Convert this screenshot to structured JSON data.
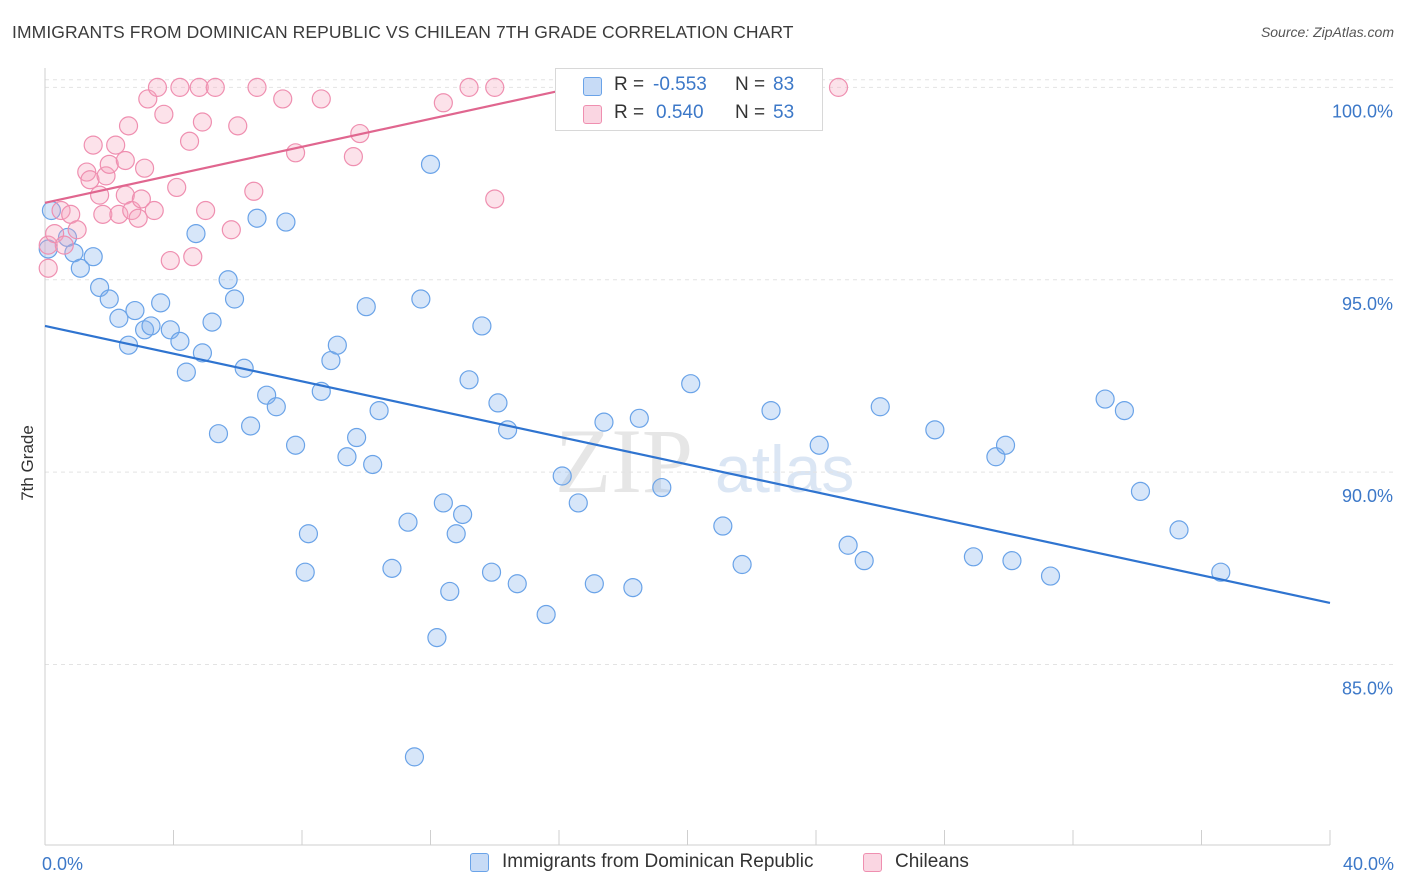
{
  "title": "IMMIGRANTS FROM DOMINICAN REPUBLIC VS CHILEAN 7TH GRADE CORRELATION CHART",
  "source": "Source: ZipAtlas.com",
  "watermark": {
    "zip": "ZIP",
    "atlas": "atlas"
  },
  "colors": {
    "blue": "#6aa3e8",
    "blue_fill": "rgba(130,176,235,0.32)",
    "blue_line": "#2f74d0",
    "pink": "#ef8fb0",
    "pink_fill": "rgba(245,165,190,0.32)",
    "pink_line": "#e0668f",
    "axis_label": "#3c78c8"
  },
  "legend": {
    "rows": [
      {
        "r_label": "R =",
        "r_value": "-0.553",
        "n_label": "N =",
        "n_value": "83"
      },
      {
        "r_label": "R =",
        "r_value": "0.540",
        "n_label": "N =",
        "n_value": "53"
      }
    ]
  },
  "bottom_legend": [
    "Immigrants from Dominican Republic",
    "Chileans"
  ],
  "chart_data": {
    "type": "scatter",
    "title": "IMMIGRANTS FROM DOMINICAN REPUBLIC VS CHILEAN 7TH GRADE CORRELATION CHART",
    "xlabel": "",
    "ylabel": "7th Grade",
    "xlim": [
      0,
      40
    ],
    "ylim": [
      80.7,
      100.4
    ],
    "x_tick_labels": [
      "0.0%",
      "40.0%"
    ],
    "y_ticks": [
      85,
      90,
      95,
      100
    ],
    "y_tick_labels": [
      "85.0%",
      "90.0%",
      "95.0%",
      "100.0%"
    ],
    "grid": "horizontal dashed",
    "legend_position": "top-center",
    "series": [
      {
        "name": "Immigrants from Dominican Republic",
        "color": "#6aa3e8",
        "trend": {
          "x": [
            0,
            40
          ],
          "y": [
            93.8,
            86.6
          ]
        },
        "points": [
          [
            0.1,
            95.8
          ],
          [
            0.2,
            96.8
          ],
          [
            0.7,
            96.1
          ],
          [
            0.9,
            95.7
          ],
          [
            1.1,
            95.3
          ],
          [
            1.5,
            95.6
          ],
          [
            1.7,
            94.8
          ],
          [
            2.0,
            94.5
          ],
          [
            2.3,
            94.0
          ],
          [
            2.6,
            93.3
          ],
          [
            2.8,
            94.2
          ],
          [
            3.1,
            93.7
          ],
          [
            3.3,
            93.8
          ],
          [
            3.6,
            94.4
          ],
          [
            3.9,
            93.7
          ],
          [
            4.2,
            93.4
          ],
          [
            4.4,
            92.6
          ],
          [
            4.7,
            96.2
          ],
          [
            4.9,
            93.1
          ],
          [
            5.2,
            93.9
          ],
          [
            5.4,
            91.0
          ],
          [
            5.7,
            95.0
          ],
          [
            5.9,
            94.5
          ],
          [
            6.2,
            92.7
          ],
          [
            6.4,
            91.2
          ],
          [
            6.6,
            96.6
          ],
          [
            6.9,
            92.0
          ],
          [
            7.2,
            91.7
          ],
          [
            7.5,
            96.5
          ],
          [
            7.8,
            90.7
          ],
          [
            8.2,
            88.4
          ],
          [
            8.1,
            87.4
          ],
          [
            8.6,
            92.1
          ],
          [
            8.9,
            92.9
          ],
          [
            9.1,
            93.3
          ],
          [
            9.4,
            90.4
          ],
          [
            9.7,
            90.9
          ],
          [
            10.0,
            94.3
          ],
          [
            10.2,
            90.2
          ],
          [
            10.4,
            91.6
          ],
          [
            10.8,
            87.5
          ],
          [
            11.3,
            88.7
          ],
          [
            11.5,
            82.6
          ],
          [
            11.7,
            94.5
          ],
          [
            12.0,
            98.0
          ],
          [
            12.2,
            85.7
          ],
          [
            12.4,
            89.2
          ],
          [
            12.6,
            86.9
          ],
          [
            12.8,
            88.4
          ],
          [
            13.0,
            88.9
          ],
          [
            13.2,
            92.4
          ],
          [
            13.6,
            93.8
          ],
          [
            13.9,
            87.4
          ],
          [
            14.1,
            91.8
          ],
          [
            14.4,
            91.1
          ],
          [
            14.7,
            87.1
          ],
          [
            15.6,
            86.3
          ],
          [
            16.1,
            89.9
          ],
          [
            16.6,
            89.2
          ],
          [
            17.1,
            87.1
          ],
          [
            17.4,
            91.3
          ],
          [
            18.3,
            87.0
          ],
          [
            18.5,
            91.4
          ],
          [
            19.2,
            89.6
          ],
          [
            20.1,
            92.3
          ],
          [
            21.1,
            88.6
          ],
          [
            21.7,
            87.6
          ],
          [
            22.6,
            91.6
          ],
          [
            24.1,
            90.7
          ],
          [
            25.0,
            88.1
          ],
          [
            25.5,
            87.7
          ],
          [
            26.0,
            91.7
          ],
          [
            27.7,
            91.1
          ],
          [
            28.9,
            87.8
          ],
          [
            29.6,
            90.4
          ],
          [
            29.9,
            90.7
          ],
          [
            30.1,
            87.7
          ],
          [
            31.3,
            87.3
          ],
          [
            33.0,
            91.9
          ],
          [
            33.6,
            91.6
          ],
          [
            34.1,
            89.5
          ],
          [
            35.3,
            88.5
          ],
          [
            36.6,
            87.4
          ]
        ]
      },
      {
        "name": "Chileans",
        "color": "#ef8fb0",
        "trend": {
          "x": [
            0,
            16.5
          ],
          "y": [
            97.0,
            100.0
          ]
        },
        "points": [
          [
            0.1,
            95.3
          ],
          [
            0.1,
            95.9
          ],
          [
            0.3,
            96.2
          ],
          [
            0.5,
            96.8
          ],
          [
            0.6,
            95.9
          ],
          [
            0.8,
            96.7
          ],
          [
            1.0,
            96.3
          ],
          [
            1.3,
            97.8
          ],
          [
            1.4,
            97.6
          ],
          [
            1.5,
            98.5
          ],
          [
            1.7,
            97.2
          ],
          [
            1.8,
            96.7
          ],
          [
            1.9,
            97.7
          ],
          [
            2.0,
            98.0
          ],
          [
            2.2,
            98.5
          ],
          [
            2.3,
            96.7
          ],
          [
            2.5,
            98.1
          ],
          [
            2.5,
            97.2
          ],
          [
            2.6,
            99.0
          ],
          [
            2.7,
            96.8
          ],
          [
            2.9,
            96.6
          ],
          [
            3.0,
            97.1
          ],
          [
            3.1,
            97.9
          ],
          [
            3.2,
            99.7
          ],
          [
            3.4,
            96.8
          ],
          [
            3.5,
            100.0
          ],
          [
            3.7,
            99.3
          ],
          [
            3.9,
            95.5
          ],
          [
            4.1,
            97.4
          ],
          [
            4.2,
            100.0
          ],
          [
            4.5,
            98.6
          ],
          [
            4.6,
            95.6
          ],
          [
            4.8,
            100.0
          ],
          [
            4.9,
            99.1
          ],
          [
            5.0,
            96.8
          ],
          [
            5.3,
            100.0
          ],
          [
            5.8,
            96.3
          ],
          [
            6.0,
            99.0
          ],
          [
            6.5,
            97.3
          ],
          [
            6.6,
            100.0
          ],
          [
            7.4,
            99.7
          ],
          [
            7.8,
            98.3
          ],
          [
            8.6,
            99.7
          ],
          [
            9.6,
            98.2
          ],
          [
            9.8,
            98.8
          ],
          [
            12.4,
            99.6
          ],
          [
            13.2,
            100.0
          ],
          [
            14.0,
            100.0
          ],
          [
            14.0,
            97.1
          ],
          [
            16.2,
            100.0
          ],
          [
            16.9,
            100.0
          ],
          [
            18.6,
            100.0
          ],
          [
            24.7,
            100.0
          ]
        ]
      }
    ]
  }
}
